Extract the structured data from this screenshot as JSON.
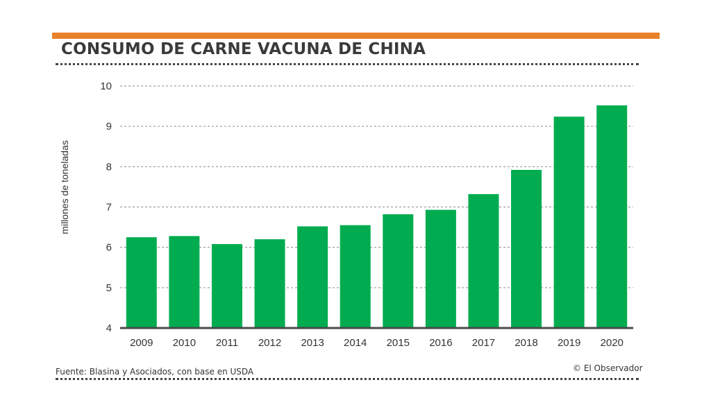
{
  "header": {
    "title": "CONSUMO DE CARNE VACUNA DE CHINA",
    "accent_color": "#e8812b"
  },
  "footer": {
    "source": "Fuente: Blasina y Asociados, con base en USDA",
    "credit": "© El Observador"
  },
  "chart_data": {
    "type": "bar",
    "title": "CONSUMO DE CARNE VACUNA DE CHINA",
    "xlabel": "",
    "ylabel": "millones de toneladas",
    "categories": [
      "2009",
      "2010",
      "2011",
      "2012",
      "2013",
      "2014",
      "2015",
      "2016",
      "2017",
      "2018",
      "2019",
      "2020"
    ],
    "values": [
      6.25,
      6.28,
      6.08,
      6.2,
      6.52,
      6.55,
      6.82,
      6.93,
      7.32,
      7.92,
      9.24,
      9.52
    ],
    "ylim": [
      4,
      10
    ],
    "yticks": [
      4,
      5,
      6,
      7,
      8,
      9,
      10
    ],
    "grid": true,
    "legend": "none",
    "bar_color": "#00ac4f"
  }
}
